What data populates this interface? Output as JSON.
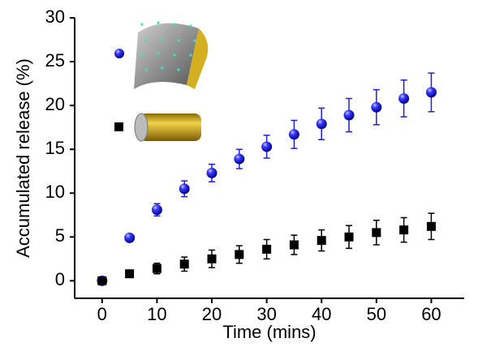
{
  "chart_data": {
    "type": "scatter",
    "xlabel": "Time (mins)",
    "ylabel": "Accumulated release (%)",
    "x": [
      0,
      5,
      10,
      15,
      20,
      25,
      30,
      35,
      40,
      45,
      50,
      55,
      60
    ],
    "series": [
      {
        "color": "#1f1fd6",
        "marker": "sphere",
        "values": [
          0,
          4.9,
          8.1,
          10.5,
          12.3,
          13.9,
          15.3,
          16.7,
          17.9,
          18.9,
          19.8,
          20.8,
          21.5
        ],
        "errors": [
          0,
          0,
          0.7,
          0.9,
          1,
          1.1,
          1.3,
          1.6,
          1.8,
          1.9,
          2,
          2.1,
          2.2
        ]
      },
      {
        "color": "#000000",
        "marker": "square",
        "values": [
          0,
          0.8,
          1.4,
          1.9,
          2.5,
          3.0,
          3.6,
          4.1,
          4.6,
          5.0,
          5.5,
          5.8,
          6.2
        ],
        "errors": [
          0,
          0,
          0.6,
          0.8,
          1,
          1,
          1.1,
          1.1,
          1.2,
          1.3,
          1.4,
          1.4,
          1.5
        ]
      }
    ],
    "xlim": [
      -5,
      66
    ],
    "xticks": [
      0,
      10,
      20,
      30,
      40,
      50,
      60
    ],
    "ylim": [
      -2,
      30
    ],
    "yticks": [
      0,
      5,
      10,
      15,
      20,
      25,
      30
    ]
  }
}
